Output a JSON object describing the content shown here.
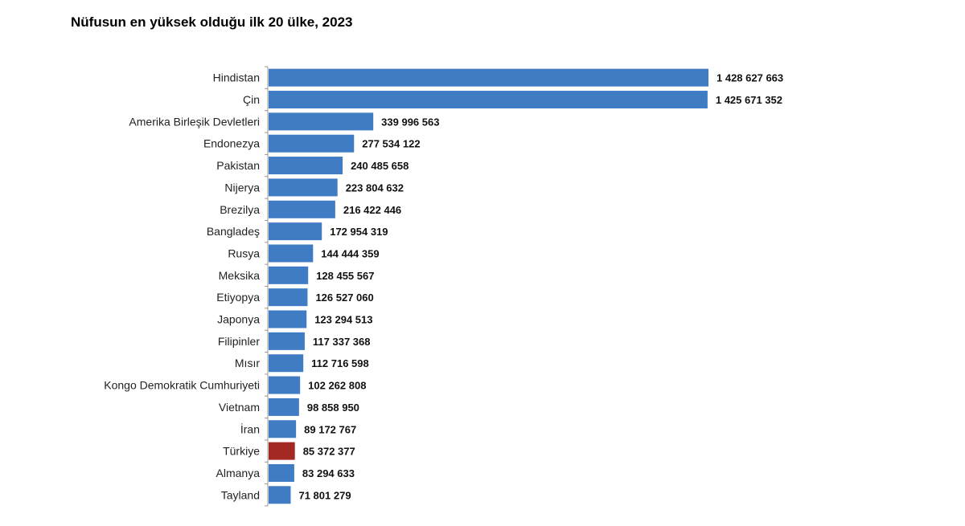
{
  "chart_data": {
    "type": "bar",
    "orientation": "horizontal",
    "title": "Nüfusun en yüksek olduğu ilk 20 ülke, 2023",
    "xlabel": "",
    "ylabel": "",
    "grid": false,
    "categories": [
      "Hindistan",
      "Çin",
      "Amerika Birleşik Devletleri",
      "Endonezya",
      "Pakistan",
      "Nijerya",
      "Brezilya",
      "Bangladeş",
      "Rusya",
      "Meksika",
      "Etiyopya",
      "Japonya",
      "Filipinler",
      "Mısır",
      "Kongo Demokratik Cumhuriyeti",
      "Vietnam",
      "İran",
      "Türkiye",
      "Almanya",
      "Tayland"
    ],
    "values": [
      1428627663,
      1425671352,
      339996563,
      277534122,
      240485658,
      223804632,
      216422446,
      172954319,
      144444359,
      128455567,
      126527060,
      123294513,
      117337368,
      112716598,
      102262808,
      98858950,
      89172767,
      85372377,
      83294633,
      71801279
    ],
    "value_labels": [
      "1 428 627 663",
      "1 425 671 352",
      "339 996 563",
      "277 534 122",
      "240 485 658",
      "223 804 632",
      "216 422 446",
      "172 954 319",
      "144 444 359",
      "128 455 567",
      "126 527 060",
      "123 294 513",
      "117 337 368",
      "112 716 598",
      "102 262 808",
      "98 858 950",
      "89 172 767",
      "85 372 377",
      "83 294 633",
      "71 801 279"
    ],
    "colors": {
      "default": "#3f7cc4",
      "highlight": "#a32a22"
    },
    "highlight_category": "Türkiye"
  }
}
